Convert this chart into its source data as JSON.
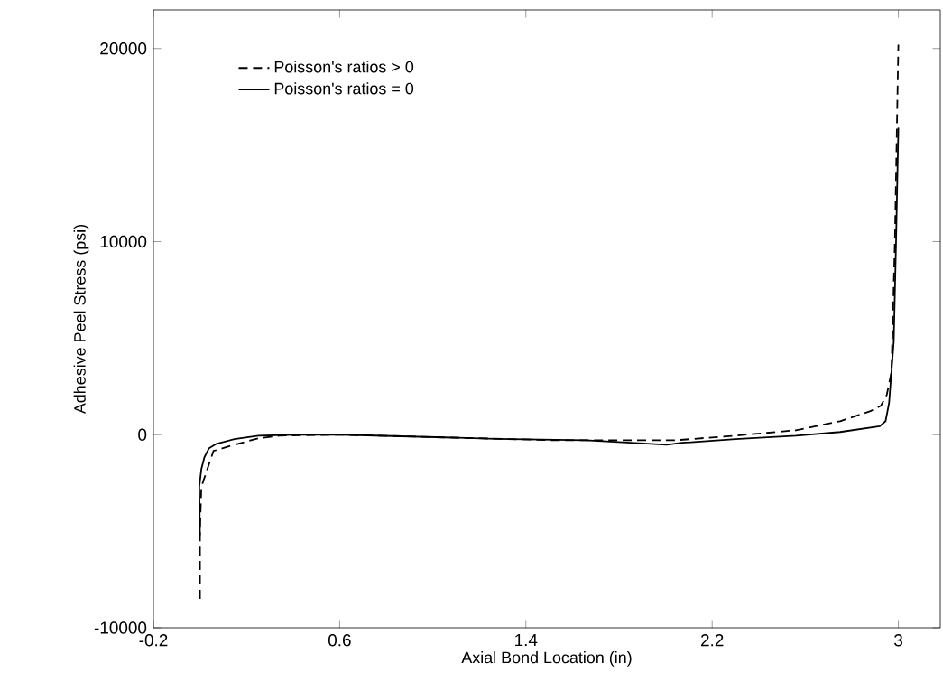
{
  "chart_data": {
    "type": "line",
    "xlabel": "Axial Bond Location (in)",
    "ylabel": "Adhesive Peel Stress (psi)",
    "xlim": [
      -0.2,
      3.18
    ],
    "ylim": [
      -10000,
      22000
    ],
    "xticks": [
      -0.2,
      0.6,
      1.4,
      2.2,
      3
    ],
    "yticks": [
      -10000,
      0,
      10000,
      20000
    ],
    "legend": "top left",
    "marker": "none",
    "series": [
      {
        "name": "Poisson's ratios > 0",
        "color": "#000000",
        "line_style": "dashed",
        "x": [
          0.0,
          0.0,
          0.006,
          0.058,
          0.148,
          0.251,
          0.34,
          0.605,
          1.05,
          1.5,
          1.85,
          2.04,
          2.3,
          2.56,
          2.75,
          2.88,
          2.925,
          2.95,
          2.97,
          2.985,
          3.0
        ],
        "values": [
          -8500,
          -5000,
          -2700,
          -840,
          -520,
          -190,
          -50,
          0,
          -140,
          -280,
          -290,
          -290,
          -50,
          230,
          700,
          1220,
          1500,
          2060,
          3230,
          10000,
          20200
        ]
      },
      {
        "name": "Poisson's ratios = 0",
        "color": "#000000",
        "line_style": "solid",
        "x": [
          0.0,
          -0.003,
          0.006,
          0.019,
          0.039,
          0.071,
          0.148,
          0.251,
          0.406,
          0.605,
          1.05,
          1.27,
          1.657,
          1.85,
          2.005,
          2.07,
          2.3,
          2.56,
          2.75,
          2.92,
          2.945,
          2.96,
          2.97,
          2.98,
          2.99,
          3.0
        ],
        "values": [
          -5200,
          -2700,
          -1780,
          -1170,
          -700,
          -470,
          -230,
          -50,
          0,
          0,
          -140,
          -220,
          -290,
          -420,
          -520,
          -420,
          -230,
          -50,
          140,
          440,
          700,
          1640,
          3230,
          4800,
          10000,
          15900
        ]
      }
    ]
  }
}
